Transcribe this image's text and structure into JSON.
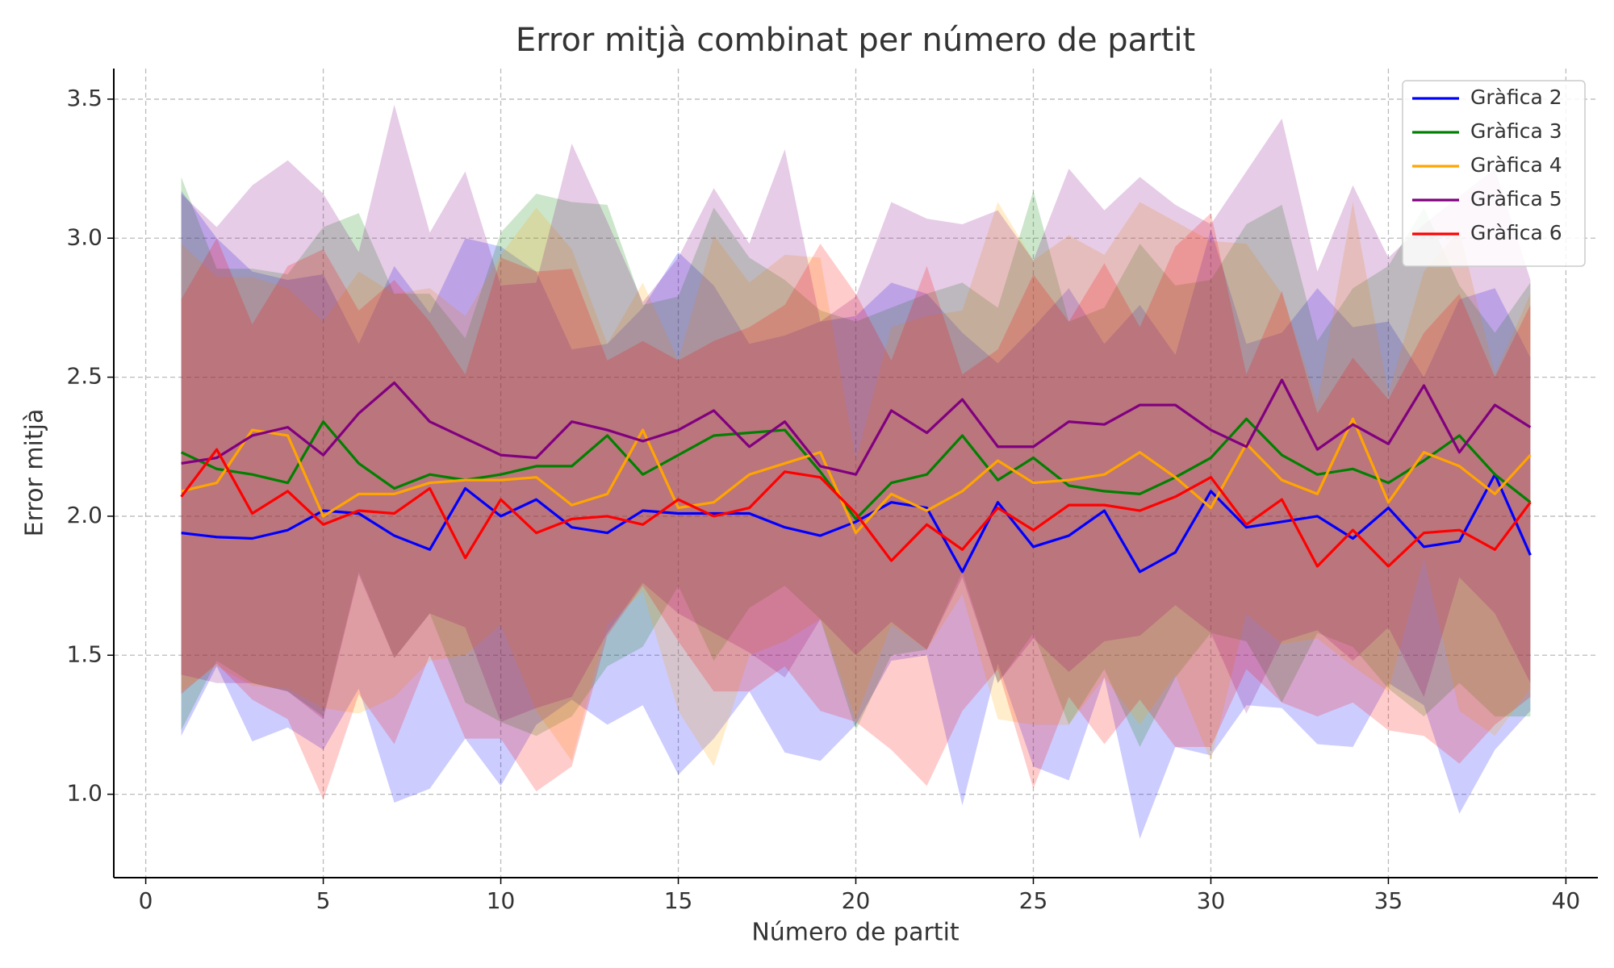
{
  "chart_data": {
    "type": "line",
    "title": "Error mitjà combinat per número de partit",
    "xlabel": "Número de partit",
    "ylabel": "Error mitjà",
    "x": [
      1,
      2,
      3,
      4,
      5,
      6,
      7,
      8,
      9,
      10,
      11,
      12,
      13,
      14,
      15,
      16,
      17,
      18,
      19,
      20,
      21,
      22,
      23,
      24,
      25,
      26,
      27,
      28,
      29,
      30,
      31,
      32,
      33,
      34,
      35,
      36,
      37,
      38,
      39
    ],
    "xlim": [
      -0.9,
      40.9
    ],
    "xticks": [
      0,
      5,
      10,
      15,
      20,
      25,
      30,
      35,
      40
    ],
    "ylim": [
      0.7,
      3.61
    ],
    "yticks": [
      {
        "value": 1.0,
        "label": "1.0"
      },
      1.5,
      {
        "value": 2.0,
        "label": "2.0"
      },
      2.5,
      {
        "value": 3.0,
        "label": "3.0"
      },
      3.5
    ],
    "grid": true,
    "legend": "upper right",
    "band_opacity": 0.2,
    "series": [
      {
        "name": "Gràfica 2",
        "color": "#0000ff",
        "values": [
          1.94,
          1.925,
          1.92,
          1.95,
          2.02,
          2.01,
          1.93,
          1.88,
          2.1,
          2.0,
          2.06,
          1.96,
          1.94,
          2.02,
          2.01,
          2.01,
          2.01,
          1.96,
          1.93,
          1.98,
          2.05,
          2.03,
          1.8,
          2.05,
          1.89,
          1.93,
          2.02,
          1.8,
          1.87,
          2.09,
          1.96,
          1.98,
          2.0,
          1.92,
          2.03,
          1.89,
          1.91,
          2.15,
          1.86
        ],
        "upper": [
          3.17,
          3.0,
          2.88,
          2.85,
          2.87,
          2.62,
          2.9,
          2.73,
          3.0,
          2.97,
          2.88,
          2.6,
          2.62,
          2.75,
          2.95,
          2.83,
          2.62,
          2.65,
          2.7,
          2.72,
          2.84,
          2.8,
          2.66,
          2.55,
          2.68,
          2.82,
          2.62,
          2.76,
          2.58,
          3.03,
          2.62,
          2.66,
          2.82,
          2.68,
          2.7,
          2.5,
          2.78,
          2.82,
          2.57
        ],
        "lower": [
          1.21,
          1.46,
          1.19,
          1.24,
          1.16,
          1.38,
          0.97,
          1.02,
          1.2,
          1.03,
          1.25,
          1.34,
          1.25,
          1.32,
          1.07,
          1.2,
          1.37,
          1.15,
          1.12,
          1.25,
          1.48,
          1.5,
          0.96,
          1.47,
          1.1,
          1.05,
          1.42,
          0.84,
          1.17,
          1.14,
          1.32,
          1.31,
          1.18,
          1.17,
          1.4,
          1.32,
          0.93,
          1.16,
          1.3
        ]
      },
      {
        "name": "Gràfica 3",
        "color": "#008000",
        "values": [
          2.23,
          2.17,
          2.15,
          2.12,
          2.34,
          2.19,
          2.1,
          2.15,
          2.13,
          2.15,
          2.18,
          2.18,
          2.29,
          2.15,
          2.22,
          2.29,
          2.3,
          2.31,
          2.16,
          1.99,
          2.12,
          2.15,
          2.29,
          2.13,
          2.21,
          2.11,
          2.09,
          2.08,
          2.14,
          2.21,
          2.35,
          2.22,
          2.15,
          2.17,
          2.12,
          2.2,
          2.29,
          2.15,
          2.05
        ],
        "upper": [
          3.22,
          2.89,
          2.89,
          2.87,
          3.04,
          3.09,
          2.8,
          2.8,
          2.64,
          3.02,
          3.16,
          3.13,
          3.12,
          2.76,
          2.79,
          3.11,
          2.93,
          2.85,
          2.74,
          2.7,
          2.75,
          2.8,
          2.84,
          2.75,
          3.17,
          2.7,
          2.75,
          2.98,
          2.83,
          2.85,
          3.05,
          3.12,
          2.63,
          2.82,
          2.9,
          3.11,
          2.83,
          2.66,
          2.84
        ],
        "lower": [
          1.23,
          1.48,
          1.4,
          1.37,
          1.28,
          1.8,
          1.49,
          1.65,
          1.33,
          1.26,
          1.21,
          1.28,
          1.46,
          1.53,
          1.75,
          1.48,
          1.67,
          1.75,
          1.63,
          1.23,
          1.5,
          1.52,
          1.8,
          1.4,
          1.58,
          1.25,
          1.45,
          1.17,
          1.42,
          1.58,
          1.55,
          1.33,
          1.58,
          1.53,
          1.38,
          1.28,
          1.4,
          1.28,
          1.28
        ]
      },
      {
        "name": "Gràfica 4",
        "color": "#ffa500",
        "values": [
          2.09,
          2.12,
          2.31,
          2.29,
          2.0,
          2.08,
          2.08,
          2.12,
          2.13,
          2.13,
          2.14,
          2.04,
          2.08,
          2.31,
          2.03,
          2.05,
          2.15,
          2.19,
          2.23,
          1.94,
          2.08,
          2.02,
          2.09,
          2.2,
          2.12,
          2.13,
          2.15,
          2.23,
          2.14,
          2.03,
          2.26,
          2.13,
          2.08,
          2.35,
          2.05,
          2.23,
          2.18,
          2.08,
          2.22
        ],
        "upper": [
          2.98,
          2.86,
          2.86,
          2.82,
          2.7,
          2.88,
          2.8,
          2.82,
          2.72,
          2.94,
          3.11,
          2.96,
          2.62,
          2.84,
          2.56,
          3.01,
          2.84,
          2.94,
          2.93,
          2.2,
          2.68,
          2.72,
          2.74,
          3.13,
          2.92,
          3.01,
          2.94,
          3.13,
          3.06,
          2.99,
          2.98,
          2.8,
          2.41,
          3.13,
          2.44,
          2.88,
          3.03,
          2.51,
          2.8
        ],
        "lower": [
          1.37,
          1.46,
          1.39,
          1.38,
          1.31,
          1.29,
          1.35,
          1.48,
          1.5,
          1.61,
          1.3,
          1.12,
          1.61,
          1.73,
          1.3,
          1.1,
          1.5,
          1.55,
          1.63,
          1.27,
          1.61,
          1.52,
          1.72,
          1.27,
          1.25,
          1.25,
          1.42,
          1.25,
          1.43,
          1.12,
          1.65,
          1.54,
          1.56,
          1.46,
          1.37,
          1.85,
          1.3,
          1.21,
          1.38
        ]
      },
      {
        "name": "Gràfica 5",
        "color": "#800080",
        "values": [
          2.19,
          2.21,
          2.29,
          2.32,
          2.22,
          2.37,
          2.48,
          2.34,
          2.28,
          2.22,
          2.21,
          2.34,
          2.31,
          2.27,
          2.31,
          2.38,
          2.25,
          2.34,
          2.18,
          2.15,
          2.38,
          2.3,
          2.42,
          2.25,
          2.25,
          2.34,
          2.33,
          2.4,
          2.4,
          2.31,
          2.25,
          2.49,
          2.24,
          2.33,
          2.26,
          2.47,
          2.23,
          2.4,
          2.32
        ],
        "upper": [
          3.16,
          3.04,
          3.19,
          3.28,
          3.16,
          2.95,
          3.48,
          3.02,
          3.24,
          2.83,
          2.84,
          3.34,
          3.06,
          2.77,
          2.93,
          3.18,
          2.98,
          3.32,
          2.7,
          2.79,
          3.13,
          3.07,
          3.05,
          3.1,
          2.92,
          3.25,
          3.1,
          3.22,
          3.12,
          3.05,
          3.24,
          3.43,
          2.88,
          3.19,
          2.93,
          3.05,
          3.15,
          3.25,
          2.85
        ],
        "lower": [
          1.43,
          1.4,
          1.4,
          1.37,
          1.27,
          1.79,
          1.49,
          1.65,
          1.6,
          1.26,
          1.31,
          1.35,
          1.58,
          1.76,
          1.65,
          1.58,
          1.51,
          1.42,
          1.63,
          1.5,
          1.62,
          1.52,
          1.78,
          1.4,
          1.56,
          1.44,
          1.55,
          1.57,
          1.68,
          1.58,
          1.29,
          1.55,
          1.59,
          1.48,
          1.6,
          1.35,
          1.78,
          1.65,
          1.4
        ]
      },
      {
        "name": "Gràfica 6",
        "color": "#ff0000",
        "values": [
          2.07,
          2.24,
          2.01,
          2.09,
          1.97,
          2.02,
          2.01,
          2.1,
          1.85,
          2.06,
          1.94,
          1.99,
          2.0,
          1.97,
          2.06,
          2.0,
          2.03,
          2.16,
          2.14,
          2.01,
          1.84,
          1.97,
          1.88,
          2.03,
          1.95,
          2.04,
          2.04,
          2.02,
          2.07,
          2.14,
          1.97,
          2.06,
          1.82,
          1.95,
          1.82,
          1.94,
          1.95,
          1.88,
          2.05
        ],
        "upper": [
          2.78,
          3.0,
          2.69,
          2.9,
          2.96,
          2.74,
          2.85,
          2.7,
          2.51,
          2.93,
          2.88,
          2.89,
          2.56,
          2.63,
          2.56,
          2.63,
          2.68,
          2.76,
          2.98,
          2.8,
          2.56,
          2.9,
          2.51,
          2.6,
          2.87,
          2.7,
          2.91,
          2.68,
          2.97,
          3.09,
          2.51,
          2.81,
          2.37,
          2.57,
          2.42,
          2.66,
          2.8,
          2.5,
          2.76
        ],
        "lower": [
          1.36,
          1.47,
          1.34,
          1.27,
          0.98,
          1.36,
          1.18,
          1.5,
          1.2,
          1.2,
          1.01,
          1.1,
          1.57,
          1.75,
          1.55,
          1.37,
          1.37,
          1.46,
          1.3,
          1.26,
          1.16,
          1.03,
          1.3,
          1.45,
          1.02,
          1.35,
          1.18,
          1.34,
          1.17,
          1.17,
          1.45,
          1.33,
          1.28,
          1.33,
          1.23,
          1.21,
          1.11,
          1.25,
          1.35
        ]
      }
    ]
  }
}
